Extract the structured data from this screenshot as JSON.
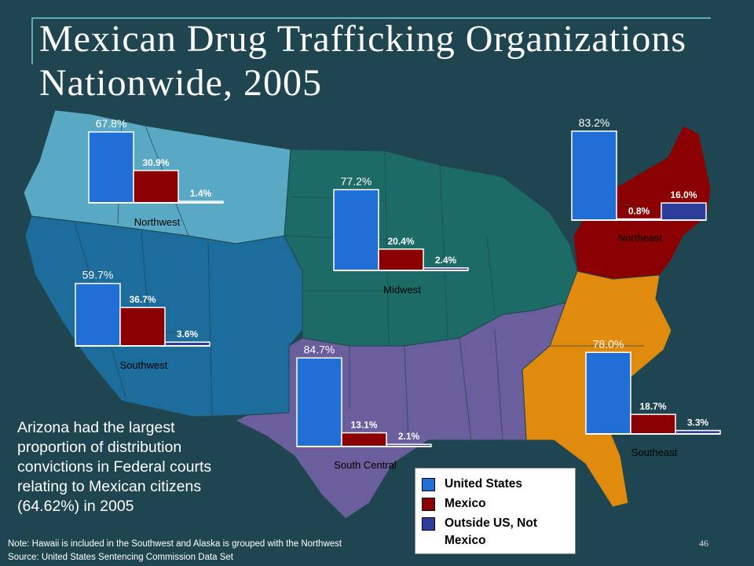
{
  "title": "Mexican Drug Trafficking Organizations Nationwide, 2005",
  "note_text": "Arizona had the largest proportion of distribution convictions in Federal courts relating to Mexican citizens (64.62%) in 2005",
  "footnote": "Note: Hawaii is included in the Southwest and Alaska is grouped with the Northwest",
  "source": "Source: United States Sentencing Commission Data Set",
  "page_number": "46",
  "colors": {
    "background": "#1f4650",
    "us_bar": "#1f6fd6",
    "mexico_bar": "#8b0000",
    "outside_bar": "#2e3d9c",
    "region_northwest": "#5aa9c4",
    "region_southwest": "#1d6d9c",
    "region_midwest": "#1c6b66",
    "region_northeast": "#8b0000",
    "region_southeast": "#e08a0e",
    "region_south_central": "#6b5e9c"
  },
  "chart_data": {
    "type": "bar",
    "series_order": [
      "United States",
      "Mexico",
      "Outside US, Not Mexico"
    ],
    "legend": [
      "United States",
      "Mexico",
      "Outside US, Not Mexico"
    ],
    "legend_placement": "bottom-right",
    "regions": [
      {
        "name": "Northwest",
        "labels": [
          "67.8%",
          "30.9%",
          "1.4%"
        ],
        "values": [
          67.8,
          30.9,
          1.4
        ]
      },
      {
        "name": "Midwest",
        "labels": [
          "77.2%",
          "20.4%",
          "2.4%"
        ],
        "values": [
          77.2,
          20.4,
          2.4
        ]
      },
      {
        "name": "Northeast",
        "labels": [
          "83.2%",
          "0.8%",
          "16.0%"
        ],
        "values": [
          83.2,
          0.8,
          16.0
        ]
      },
      {
        "name": "Southwest",
        "labels": [
          "59.7%",
          "36.7%",
          "3.6%"
        ],
        "values": [
          59.7,
          36.7,
          3.6
        ]
      },
      {
        "name": "South Central",
        "labels": [
          "84.7%",
          "13.1%",
          "2.1%"
        ],
        "values": [
          84.7,
          13.1,
          2.1
        ]
      },
      {
        "name": "Southeast",
        "labels": [
          "78.0%",
          "18.7%",
          "3.3%"
        ],
        "values": [
          78.0,
          18.7,
          3.3
        ]
      }
    ]
  }
}
